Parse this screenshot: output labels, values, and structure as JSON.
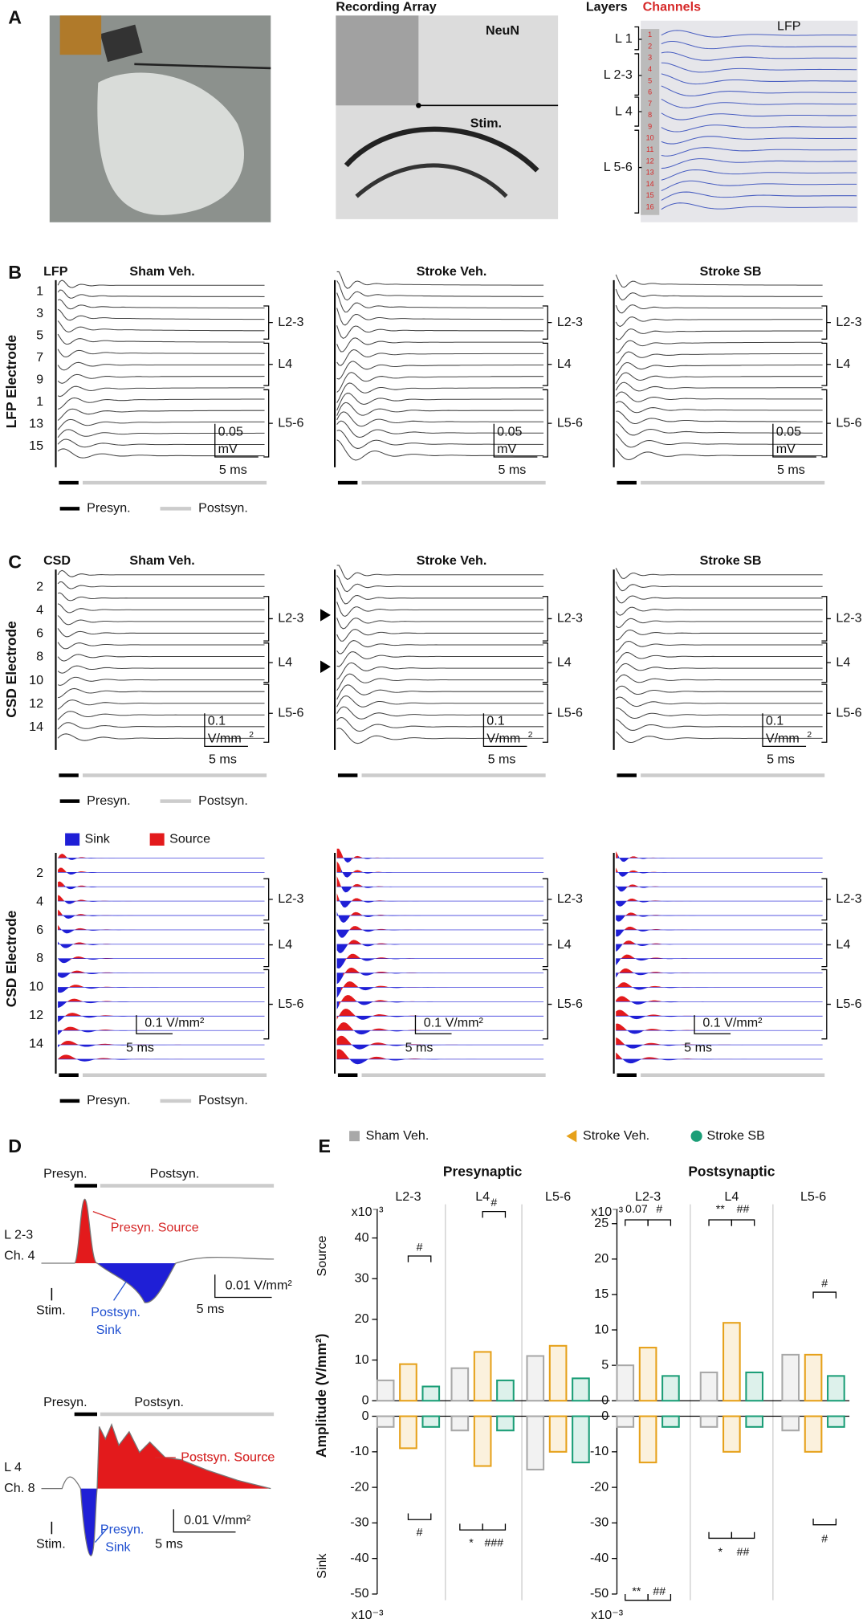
{
  "panel_labels": [
    "A",
    "B",
    "C",
    "D",
    "E"
  ],
  "panel_a": {
    "array_title": "Recording Array",
    "stain": "NeuN",
    "stim": "Stim.",
    "layers_title": "Layers",
    "channels_title": "Channels",
    "lfp": "LFP",
    "layers": [
      "L 1",
      "L 2-3",
      "L 4",
      "L 5-6"
    ],
    "channels": [
      1,
      2,
      3,
      4,
      5,
      6,
      7,
      8,
      9,
      10,
      11,
      12,
      13,
      14,
      15,
      16
    ]
  },
  "panel_b": {
    "signal": "LFP",
    "titles": [
      "Sham Veh.",
      "Stroke Veh.",
      "Stroke SB"
    ],
    "ylabel": "LFP Electrode",
    "electrodes": [
      1,
      3,
      5,
      7,
      9,
      1,
      13,
      15
    ],
    "layers": [
      "L2-3",
      "L4",
      "L5-6"
    ],
    "scale_y": "0.05",
    "scale_y_unit": "mV",
    "scale_x": "5 ms",
    "presyn": "Presyn.",
    "postsyn": "Postsyn."
  },
  "panel_c": {
    "signal": "CSD",
    "titles": [
      "Sham Veh.",
      "Stroke Veh.",
      "Stroke SB"
    ],
    "ylabel": "CSD Electrode",
    "electrodes": [
      2,
      4,
      6,
      8,
      10,
      12,
      14
    ],
    "layers": [
      "L2-3",
      "L4",
      "L5-6"
    ],
    "scale_y": "0.1",
    "scale_y_unit": "V/mm",
    "scale_y_exp": "2",
    "scale_x": "5 ms",
    "presyn": "Presyn.",
    "postsyn": "Postsyn."
  },
  "panel_c_map": {
    "sink": "Sink",
    "source": "Source",
    "ylabel": "CSD Electrode",
    "electrodes": [
      2,
      4,
      6,
      8,
      10,
      12,
      14
    ],
    "layers": [
      "L2-3",
      "L4",
      "L5-6"
    ],
    "scale_y": "0.1 V/mm²",
    "scale_x": "5 ms",
    "presyn": "Presyn.",
    "postsyn": "Postsyn."
  },
  "panel_d": {
    "top": {
      "phases": [
        "Presyn.",
        "Postsyn."
      ],
      "layer": "L 2-3",
      "channel": "Ch. 4",
      "peak": "Presyn. Source",
      "trough": [
        "Postsyn.",
        "Sink"
      ],
      "stim": "Stim.",
      "scale_y": "0.01 V/mm²",
      "scale_x": "5 ms"
    },
    "bottom": {
      "phases": [
        "Presyn.",
        "Postsyn."
      ],
      "layer": "L 4",
      "channel": "Ch. 8",
      "peak": "Postsyn. Source",
      "trough": [
        "Presyn.",
        "Sink"
      ],
      "stim": "Stim.",
      "scale_y": "0.01 V/mm²",
      "scale_x": "5 ms"
    }
  },
  "panel_e": {
    "ylabel": "Amplitude (V/mm²)",
    "source": "Source",
    "sink": "Sink"
  },
  "chart_data": [
    {
      "type": "bar",
      "title": "Presynaptic",
      "unit_label": "x10⁻³",
      "categories": [
        "L2-3",
        "L4",
        "L5-6"
      ],
      "series": [
        {
          "name": "Sham Veh.",
          "color": "#a8a8a8",
          "values": [
            5,
            8,
            11
          ]
        },
        {
          "name": "Stroke Veh.",
          "color": "#e6a11a",
          "values": [
            9,
            12,
            13.5
          ]
        },
        {
          "name": "Stroke SB",
          "color": "#1b9e77",
          "values": [
            3.5,
            5,
            5.5
          ]
        }
      ],
      "ylim": [
        0,
        47
      ],
      "yticks": [
        0,
        10,
        20,
        30,
        40
      ],
      "annotations": [
        "#",
        "#"
      ]
    },
    {
      "type": "bar",
      "unit_label": "x10⁻³",
      "series": [
        {
          "color": "#a8a8a8",
          "values": [
            -3,
            -4,
            -15
          ]
        },
        {
          "color": "#e6a11a",
          "values": [
            -9,
            -14,
            -10
          ]
        },
        {
          "color": "#1b9e77",
          "values": [
            -3,
            -4,
            -13
          ]
        }
      ],
      "ylim": [
        -50,
        0
      ],
      "yticks": [
        0,
        -10,
        -20,
        -30,
        -40,
        -50
      ],
      "annotations": [
        "#",
        "*",
        "###"
      ]
    },
    {
      "type": "bar",
      "title": "Postsynaptic",
      "unit_label": "x10⁻³",
      "categories": [
        "L2-3",
        "L4",
        "L5-6"
      ],
      "series": [
        {
          "color": "#a8a8a8",
          "values": [
            5,
            4,
            6.5
          ]
        },
        {
          "color": "#e6a11a",
          "values": [
            7.5,
            11,
            6.5
          ]
        },
        {
          "color": "#1b9e77",
          "values": [
            3.5,
            4,
            3.5
          ]
        }
      ],
      "ylim": [
        0,
        27
      ],
      "yticks": [
        0,
        5,
        10,
        15,
        20,
        25
      ],
      "annotations": [
        "0.07",
        "#",
        "**",
        "##",
        "#"
      ]
    },
    {
      "type": "bar",
      "unit_label": "x10⁻³",
      "series": [
        {
          "color": "#a8a8a8",
          "values": [
            -3,
            -3,
            -4
          ]
        },
        {
          "color": "#e6a11a",
          "values": [
            -13,
            -10,
            -10
          ]
        },
        {
          "color": "#1b9e77",
          "values": [
            -3,
            -3,
            -3
          ]
        }
      ],
      "ylim": [
        -50,
        0
      ],
      "yticks": [
        0,
        -10,
        -20,
        -30,
        -40,
        -50
      ],
      "annotations": [
        "**",
        "##",
        "*",
        "##",
        "#"
      ]
    }
  ]
}
